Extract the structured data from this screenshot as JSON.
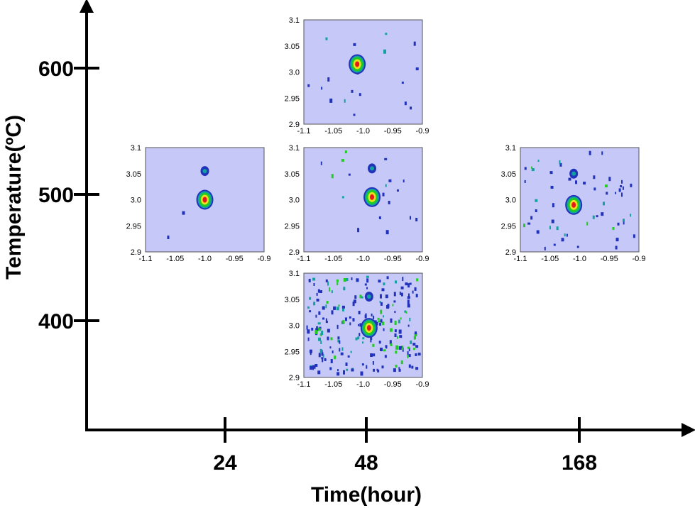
{
  "chart_data": {
    "type": "heatmap",
    "xlabel": "Time(hour)",
    "ylabel": "Temperature(ºC)",
    "x_ticks": [
      "24",
      "48",
      "168"
    ],
    "y_ticks": [
      "400",
      "500",
      "600"
    ],
    "x_scale": "categorical",
    "y_unit": "ºC",
    "grid": false,
    "insets_common": {
      "x_ticks": [
        "-1.1",
        "-1.05",
        "-1.0",
        "-0.95",
        "-0.9"
      ],
      "y_ticks": [
        "3.1",
        "3.05",
        "3.0",
        "2.95",
        "2.9"
      ],
      "xlim": [
        -1.1,
        -0.9
      ],
      "ylim": [
        2.9,
        3.1
      ],
      "background_color": "#c6c8f7",
      "colorscale": [
        "#c6c8f7",
        "#2233bb",
        "#13a0a0",
        "#22cc22",
        "#e8e020",
        "#e41a1a"
      ]
    },
    "insets": [
      {
        "time": "24",
        "temperature": 500,
        "peak_center": [
          -1.0,
          3.0
        ],
        "secondary_peak": [
          -1.0,
          3.055
        ],
        "noise": "very low"
      },
      {
        "time": "48",
        "temperature": 600,
        "peak_center": [
          -1.01,
          3.015
        ],
        "secondary_peak": null,
        "noise": "low"
      },
      {
        "time": "48",
        "temperature": 500,
        "peak_center": [
          -0.985,
          3.005
        ],
        "secondary_peak": [
          -0.985,
          3.06
        ],
        "noise": "low"
      },
      {
        "time": "48",
        "temperature": 400,
        "peak_center": [
          -0.99,
          2.995
        ],
        "secondary_peak": [
          -0.99,
          3.055
        ],
        "noise": "high"
      },
      {
        "time": "168",
        "temperature": 500,
        "peak_center": [
          -1.01,
          2.99
        ],
        "secondary_peak": [
          -1.01,
          3.05
        ],
        "noise": "medium"
      }
    ]
  }
}
